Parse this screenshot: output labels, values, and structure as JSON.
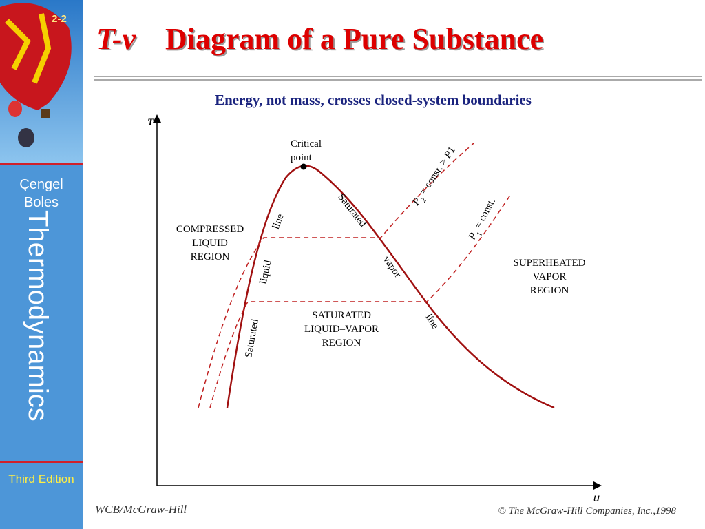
{
  "slide": {
    "number": "2-2",
    "title_italic": "T-v",
    "title": "Diagram of a Pure Substance",
    "subtitle": "Energy, not mass, crosses closed-system boundaries",
    "sidebar": {
      "author1": "Çengel",
      "author2": "Boles",
      "book": "Thermodynamics",
      "edition": "Third Edition"
    },
    "footer_left": "WCB/McGraw-Hill",
    "footer_right": "© The McGraw-Hill Companies, Inc.,1998"
  },
  "diagram": {
    "y_axis": "T",
    "x_axis": "u",
    "critical_point": [
      "Critical",
      "point"
    ],
    "compressed": [
      "COMPRESSED",
      "LIQUID",
      "REGION"
    ],
    "superheated": [
      "SUPERHEATED",
      "VAPOR",
      "REGION"
    ],
    "saturated_region": [
      "SATURATED",
      "LIQUID–VAPOR",
      "REGION"
    ],
    "liquid_line": [
      "Saturated",
      "liquid",
      "line"
    ],
    "vapor_line": [
      "Saturated",
      "vapor",
      "line"
    ],
    "p2": [
      "P",
      "2",
      " = const. > ",
      "P",
      "1"
    ],
    "p1": [
      "P",
      "1",
      " = const."
    ]
  }
}
